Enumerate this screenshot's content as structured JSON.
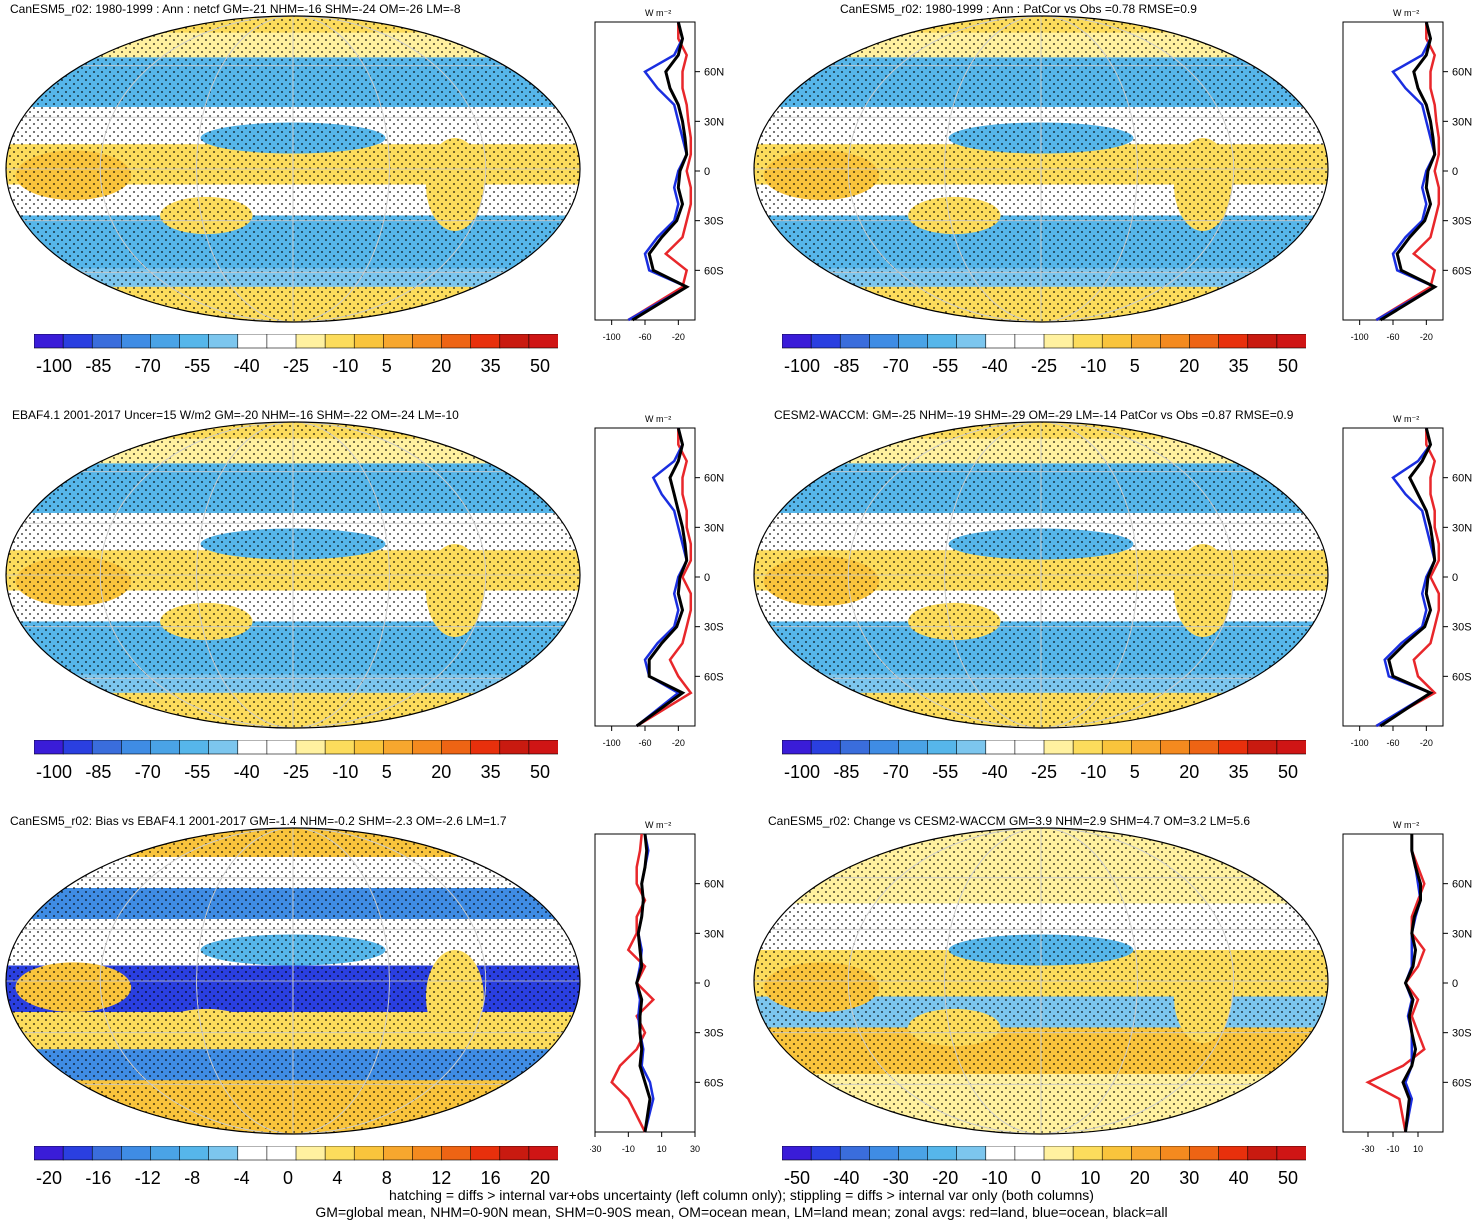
{
  "panels": [
    {
      "id": "p1",
      "title": "CanESM5_r02: 1980-1999 : Ann : netcf GM=-21 NHM=-16 SHM=-24 OM=-26 LM=-8",
      "colorbar_labels": [
        "-100",
        "-85",
        "-70",
        "-55",
        "-40",
        "-25",
        "-10",
        "5",
        "20",
        "35",
        "50"
      ],
      "zonal_xticks": [
        "-100",
        "-60",
        "-20"
      ],
      "zonal_unit": "W m⁻²",
      "lat_labels": [
        "60N",
        "30N",
        "0",
        "30S",
        "60S"
      ]
    },
    {
      "id": "p2",
      "title": "CanESM5_r02: 1980-1999 : Ann : PatCor vs Obs =0.78 RMSE=0.9",
      "colorbar_labels": [
        "-100",
        "-85",
        "-70",
        "-55",
        "-40",
        "-25",
        "-10",
        "5",
        "20",
        "35",
        "50"
      ],
      "zonal_xticks": [
        "-100",
        "-60",
        "-20"
      ],
      "zonal_unit": "W m⁻²",
      "lat_labels": [
        "60N",
        "30N",
        "0",
        "30S",
        "60S"
      ]
    },
    {
      "id": "p3",
      "title": "EBAF4.1 2001-2017 Uncer=15 W/m2 GM=-20 NHM=-16 SHM=-22 OM=-24 LM=-10",
      "colorbar_labels": [
        "-100",
        "-85",
        "-70",
        "-55",
        "-40",
        "-25",
        "-10",
        "5",
        "20",
        "35",
        "50"
      ],
      "zonal_xticks": [
        "-100",
        "-60",
        "-20"
      ],
      "zonal_unit": "W m⁻²",
      "lat_labels": [
        "60N",
        "30N",
        "0",
        "30S",
        "60S"
      ]
    },
    {
      "id": "p4",
      "title": "CESM2-WACCM: GM=-25 NHM=-19 SHM=-29 OM=-29 LM=-14 PatCor vs Obs =0.87 RMSE=0.9",
      "colorbar_labels": [
        "-100",
        "-85",
        "-70",
        "-55",
        "-40",
        "-25",
        "-10",
        "5",
        "20",
        "35",
        "50"
      ],
      "zonal_xticks": [
        "-100",
        "-60",
        "-20"
      ],
      "zonal_unit": "W m⁻²",
      "lat_labels": [
        "60N",
        "30N",
        "0",
        "30S",
        "60S"
      ]
    },
    {
      "id": "p5",
      "title": "CanESM5_r02: Bias vs EBAF4.1 2001-2017 GM=-1.4 NHM=-0.2 SHM=-2.3 OM=-2.6 LM=1.7",
      "colorbar_labels": [
        "-20",
        "-16",
        "-12",
        "-8",
        "-4",
        "0",
        "4",
        "8",
        "12",
        "16",
        "20"
      ],
      "zonal_xticks": [
        "-30",
        "-10",
        "10",
        "30"
      ],
      "zonal_unit": "W m⁻²",
      "lat_labels": [
        "60N",
        "30N",
        "0",
        "30S",
        "60S"
      ]
    },
    {
      "id": "p6",
      "title": "CanESM5_r02: Change vs CESM2-WACCM GM=3.9 NHM=2.9 SHM=4.7 OM=3.2 LM=5.6",
      "colorbar_labels": [
        "-50",
        "-40",
        "-30",
        "-20",
        "-10",
        "0",
        "10",
        "20",
        "30",
        "40",
        "50"
      ],
      "zonal_xticks": [
        "-30",
        "-10",
        "10"
      ],
      "zonal_unit": "W m⁻²",
      "lat_labels": [
        "60N",
        "30N",
        "0",
        "30S",
        "60S"
      ]
    }
  ],
  "footer": {
    "line1": "hatching = diffs > internal var+obs uncertainty (left column only); stippling = diffs > internal var only (both columns)",
    "line2": "GM=global mean, NHM=0-90N mean, SHM=0-90S mean, OM=ocean mean, LM=land mean; zonal avgs: red=land, blue=ocean, black=all"
  },
  "colors": {
    "palette": [
      "#3a1cd8",
      "#2a3fe0",
      "#3a6ddc",
      "#3f8ce4",
      "#4aa3e6",
      "#56b6ea",
      "#7cc6ee",
      "#ffffff",
      "#ffffff",
      "#fff1a0",
      "#fcdc5c",
      "#f9c43c",
      "#f7a72e",
      "#f48a1f",
      "#ee6414",
      "#e8300c",
      "#c91a10",
      "#cf1515"
    ],
    "land": "#e8272b",
    "ocean": "#1a2ee0",
    "all": "#000000"
  },
  "chart_data": [
    {
      "type": "heatmap",
      "panel": "p1",
      "title": "CanESM5_r02: 1980-1999 : Ann : netcf GM=-21 NHM=-16 SHM=-24 OM=-26 LM=-8",
      "clim": [
        -100,
        50
      ],
      "zonal": {
        "lat": [
          -90,
          -70,
          -60,
          -50,
          -40,
          -30,
          -20,
          -10,
          0,
          10,
          20,
          30,
          40,
          50,
          60,
          70,
          80,
          90
        ],
        "land": [
          -80,
          -15,
          -10,
          -35,
          -15,
          -10,
          -5,
          -5,
          -10,
          -5,
          -5,
          -8,
          -10,
          -15,
          -15,
          -10,
          -20,
          -20
        ],
        "ocean": [
          -80,
          -10,
          -55,
          -60,
          -45,
          -25,
          -20,
          -25,
          -20,
          -10,
          -15,
          -20,
          -25,
          -45,
          -60,
          -25,
          -15,
          -20
        ],
        "all": [
          -75,
          -10,
          -50,
          -55,
          -40,
          -22,
          -15,
          -20,
          -18,
          -10,
          -12,
          -15,
          -20,
          -30,
          -35,
          -20,
          -15,
          -20
        ]
      }
    },
    {
      "type": "heatmap",
      "panel": "p2",
      "title": "CanESM5_r02: 1980-1999 : Ann : PatCor vs Obs =0.78 RMSE=0.9",
      "clim": [
        -100,
        50
      ],
      "zonal": {
        "lat": [
          -90,
          -70,
          -60,
          -50,
          -40,
          -30,
          -20,
          -10,
          0,
          10,
          20,
          30,
          40,
          50,
          60,
          70,
          80,
          90
        ],
        "land": [
          -80,
          -15,
          -10,
          -35,
          -15,
          -10,
          -5,
          -5,
          -10,
          -5,
          -5,
          -8,
          -10,
          -15,
          -15,
          -10,
          -20,
          -20
        ],
        "ocean": [
          -80,
          -10,
          -55,
          -60,
          -45,
          -25,
          -20,
          -25,
          -20,
          -10,
          -15,
          -20,
          -25,
          -45,
          -60,
          -25,
          -15,
          -20
        ],
        "all": [
          -75,
          -10,
          -50,
          -55,
          -40,
          -22,
          -15,
          -20,
          -18,
          -10,
          -12,
          -15,
          -20,
          -30,
          -35,
          -20,
          -15,
          -20
        ]
      }
    },
    {
      "type": "heatmap",
      "panel": "p3",
      "title": "EBAF4.1 2001-2017 Uncer=15 W/m2 GM=-20 NHM=-16 SHM=-22 OM=-24 LM=-10",
      "clim": [
        -100,
        50
      ],
      "zonal": {
        "lat": [
          -90,
          -70,
          -60,
          -50,
          -40,
          -30,
          -20,
          -10,
          0,
          10,
          20,
          30,
          40,
          50,
          60,
          70,
          80,
          90
        ],
        "land": [
          -70,
          -5,
          -20,
          -30,
          -15,
          -10,
          -5,
          -5,
          -15,
          -5,
          -5,
          -10,
          -10,
          -15,
          -15,
          -10,
          -20,
          -20
        ],
        "ocean": [
          -70,
          -20,
          -55,
          -60,
          -45,
          -25,
          -20,
          -25,
          -20,
          -10,
          -15,
          -20,
          -25,
          -40,
          -50,
          -25,
          -15,
          -20
        ],
        "all": [
          -70,
          -15,
          -55,
          -55,
          -40,
          -22,
          -15,
          -20,
          -18,
          -10,
          -12,
          -15,
          -20,
          -25,
          -30,
          -20,
          -15,
          -20
        ]
      }
    },
    {
      "type": "heatmap",
      "panel": "p4",
      "title": "CESM2-WACCM: GM=-25 NHM=-19 SHM=-29 OM=-29 LM=-14 PatCor vs Obs =0.87 RMSE=0.9",
      "clim": [
        -100,
        50
      ],
      "zonal": {
        "lat": [
          -90,
          -70,
          -60,
          -50,
          -40,
          -30,
          -20,
          -10,
          0,
          10,
          20,
          30,
          40,
          50,
          60,
          70,
          80,
          90
        ],
        "land": [
          -80,
          -10,
          -30,
          -35,
          -15,
          -10,
          -5,
          -5,
          -15,
          -5,
          -5,
          -10,
          -10,
          -15,
          -15,
          -10,
          -20,
          -20
        ],
        "ocean": [
          -80,
          -15,
          -65,
          -70,
          -50,
          -25,
          -20,
          -25,
          -20,
          -10,
          -15,
          -20,
          -25,
          -45,
          -60,
          -30,
          -15,
          -20
        ],
        "all": [
          -75,
          -15,
          -60,
          -65,
          -45,
          -22,
          -15,
          -20,
          -18,
          -10,
          -12,
          -15,
          -20,
          -30,
          -40,
          -25,
          -15,
          -20
        ]
      }
    },
    {
      "type": "heatmap",
      "panel": "p5",
      "title": "CanESM5_r02: Bias vs EBAF4.1 2001-2017 GM=-1.4 NHM=-0.2 SHM=-2.3 OM=-2.6 LM=1.7",
      "clim": [
        -20,
        20
      ],
      "zonal": {
        "lat": [
          -90,
          -70,
          -60,
          -50,
          -40,
          -30,
          -20,
          -10,
          0,
          10,
          20,
          30,
          40,
          50,
          60,
          70,
          80,
          90
        ],
        "land": [
          0,
          -10,
          -20,
          -15,
          -5,
          0,
          -5,
          5,
          -5,
          0,
          -10,
          -5,
          -5,
          0,
          -5,
          -5,
          -3,
          -2
        ],
        "ocean": [
          0,
          5,
          3,
          -2,
          -1,
          -3,
          -4,
          -3,
          -5,
          -3,
          -2,
          -4,
          -2,
          -1,
          -2,
          0,
          2,
          0
        ],
        "all": [
          0,
          3,
          0,
          -3,
          -2,
          -3,
          -3,
          -2,
          -5,
          -2,
          -3,
          -4,
          -2,
          -1,
          -2,
          0,
          1,
          0
        ]
      }
    },
    {
      "type": "heatmap",
      "panel": "p6",
      "title": "CanESM5_r02: Change vs CESM2-WACCM GM=3.9 NHM=2.9 SHM=4.7 OM=3.2 LM=5.6",
      "clim": [
        -50,
        50
      ],
      "zonal": {
        "lat": [
          -90,
          -70,
          -60,
          -50,
          -40,
          -30,
          -20,
          -10,
          0,
          10,
          20,
          30,
          40,
          50,
          60,
          70,
          80,
          90
        ],
        "land": [
          0,
          -5,
          -30,
          -2,
          15,
          10,
          5,
          10,
          0,
          10,
          15,
          5,
          5,
          10,
          15,
          10,
          5,
          5
        ],
        "ocean": [
          0,
          5,
          0,
          5,
          5,
          5,
          2,
          5,
          0,
          5,
          5,
          5,
          8,
          12,
          10,
          8,
          5,
          5
        ],
        "all": [
          0,
          3,
          -2,
          5,
          8,
          5,
          3,
          6,
          0,
          6,
          8,
          5,
          7,
          12,
          12,
          8,
          5,
          5
        ]
      }
    }
  ]
}
